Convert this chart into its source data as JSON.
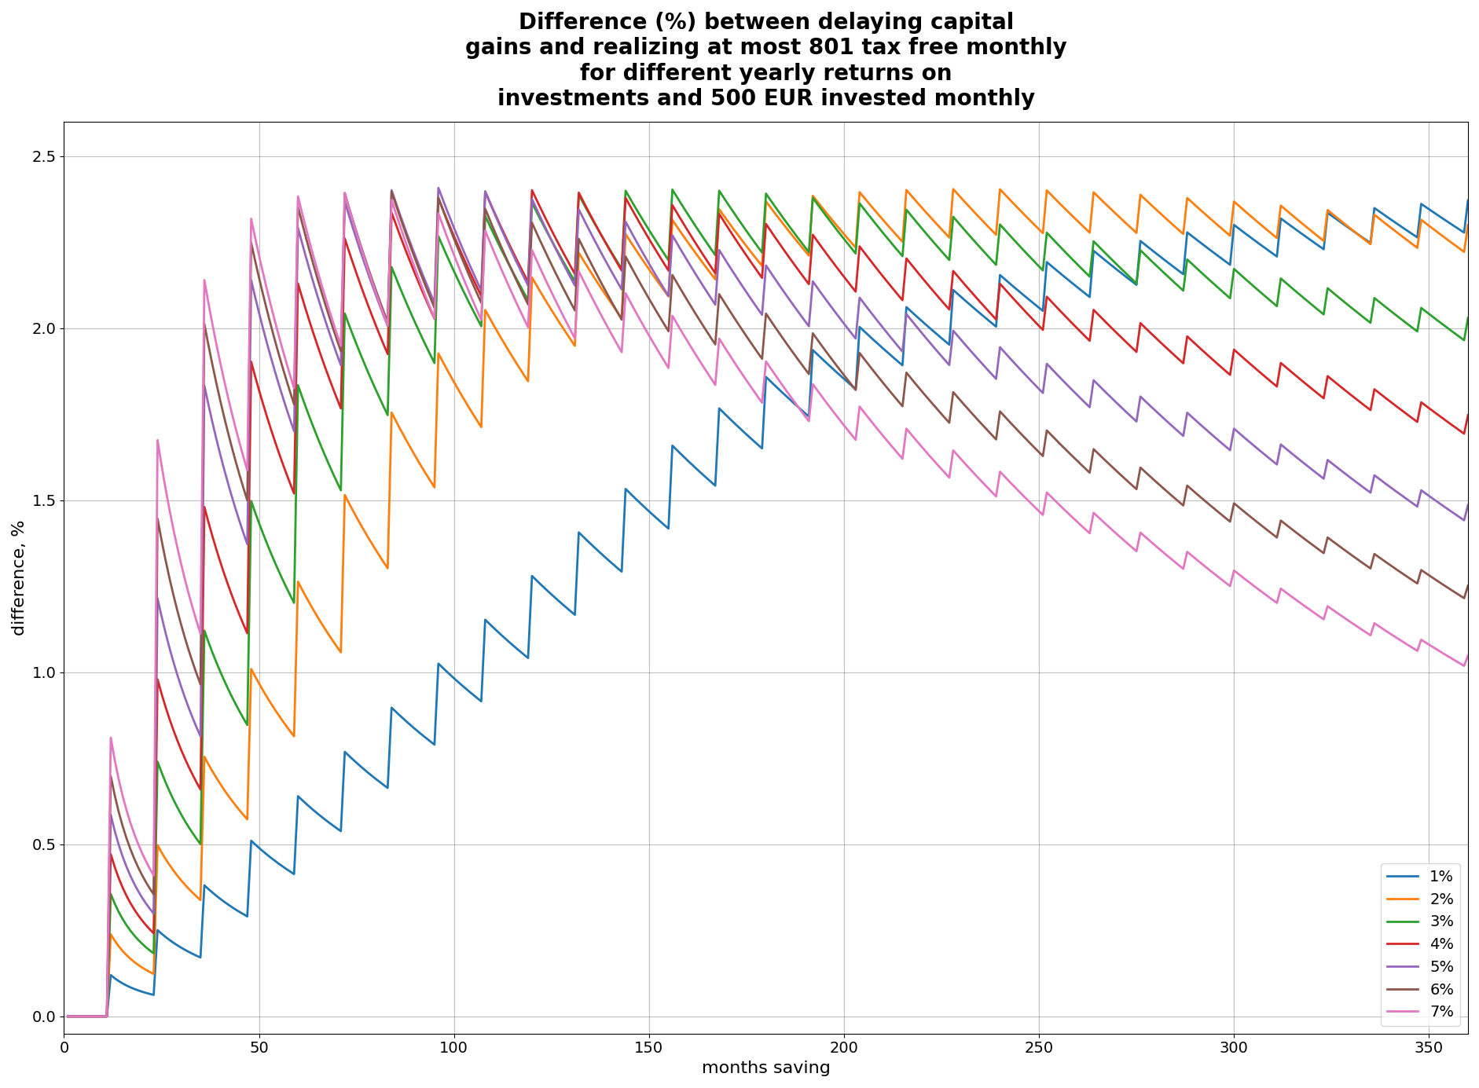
{
  "monthly_investment": 500,
  "tax_free_yearly": 801,
  "yearly_returns": [
    0.01,
    0.02,
    0.03,
    0.04,
    0.05,
    0.06,
    0.07
  ],
  "line_colors": [
    "#1f77b4",
    "#ff7f0e",
    "#2ca02c",
    "#d62728",
    "#9467bd",
    "#8c564b",
    "#e377c2"
  ],
  "line_labels": [
    "1%",
    "2%",
    "3%",
    "4%",
    "5%",
    "6%",
    "7%"
  ],
  "n_months": 360,
  "title": "Difference (%) between delaying capital\ngains and realizing at most 801 tax free monthly\nfor different yearly returns on\ninvestments and 500 EUR invested monthly",
  "xlabel": "months saving",
  "ylabel": "difference, %",
  "ylim": [
    -0.05,
    2.6
  ],
  "xlim": [
    0,
    360
  ],
  "background_color": "#ffffff",
  "title_fontsize": 20,
  "axis_fontsize": 16,
  "tick_fontsize": 14,
  "legend_fontsize": 14
}
